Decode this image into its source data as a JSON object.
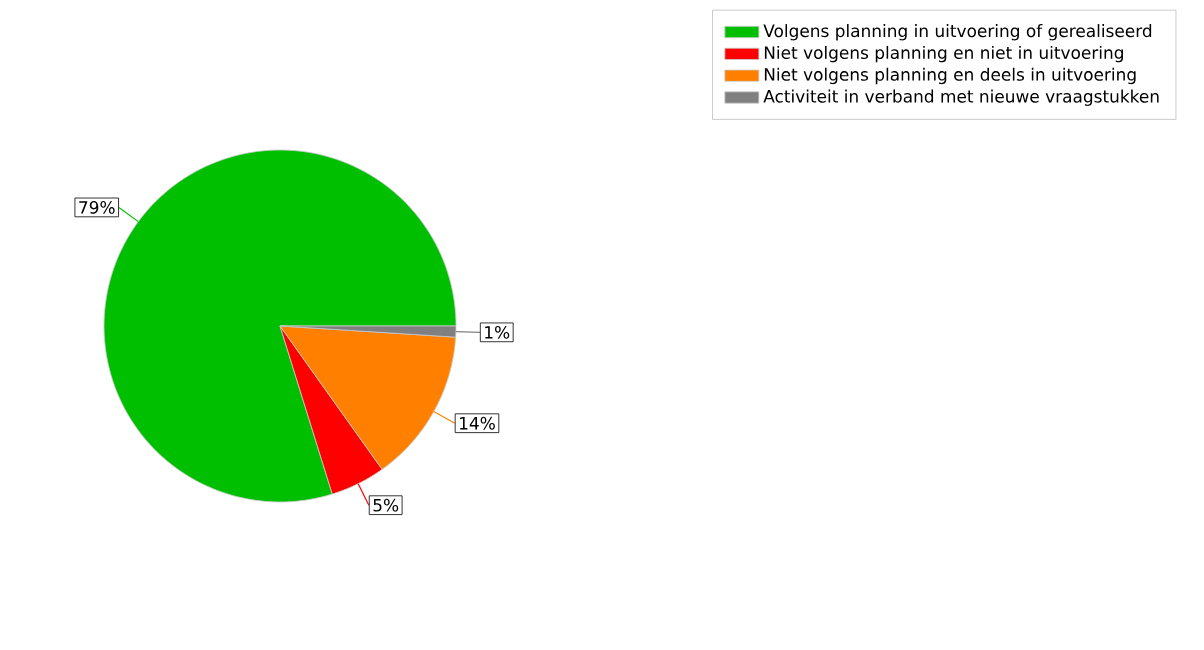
{
  "chart_data": {
    "type": "pie",
    "categories": [
      "Volgens planning in uitvoering of gerealiseerd",
      "Niet volgens planning en niet in uitvoering",
      "Niet volgens planning en deels in uitvoering",
      "Activiteit in verband met nieuwe vraagstukken"
    ],
    "values": [
      79,
      5,
      14,
      1
    ],
    "colors": [
      "#00bf00",
      "#ff0000",
      "#ff8000",
      "#808080"
    ],
    "value_labels": [
      "79%",
      "5%",
      "14%",
      "1%"
    ],
    "legend": "top right"
  }
}
